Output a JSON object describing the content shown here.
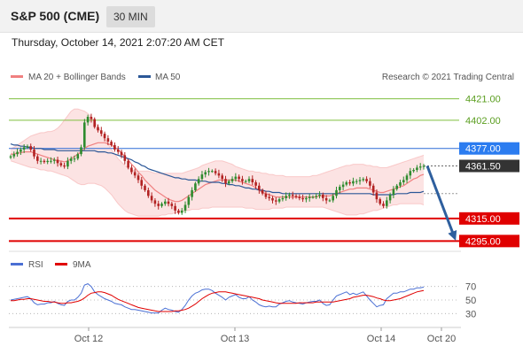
{
  "header": {
    "symbol": "S&P 500 (CME)",
    "timeframe": "30 MIN",
    "datetime": "Thursday, October 14, 2021 2:07:20 AM CET"
  },
  "legend": {
    "bollinger": "MA 20 + Bollinger Bands",
    "ma50": "MA 50",
    "credit": "Research © 2021 Trading Central",
    "rsi": "RSI",
    "rsi_ma": "9MA"
  },
  "colors": {
    "up": "#2e8b2e",
    "down": "#b22222",
    "bollinger": "#f08080",
    "ma50": "#2b5797",
    "resistance": "#7fbf3f",
    "support": "#e00000",
    "current": "#333333",
    "arrow": "#2e5f9e"
  },
  "chart_data": [
    {
      "type": "candlestick",
      "y_axis": "right",
      "ylim": [
        4289,
        4434
      ],
      "x_ticks": [
        "Oct 12",
        "Oct 13",
        "Oct 14",
        "Oct 20"
      ],
      "levels": [
        {
          "value": 4421.0,
          "label": "4421.00",
          "kind": "resistance"
        },
        {
          "value": 4402.0,
          "label": "4402.00",
          "kind": "resistance"
        },
        {
          "value": 4377.0,
          "label": "4377.00",
          "kind": "pivot"
        },
        {
          "value": 4361.5,
          "label": "4361.50",
          "kind": "current"
        },
        {
          "value": 4315.0,
          "label": "4315.00",
          "kind": "support"
        },
        {
          "value": 4295.0,
          "label": "4295.00",
          "kind": "support"
        }
      ],
      "close": [
        4370,
        4372,
        4374,
        4376,
        4378,
        4379,
        4376,
        4370,
        4366,
        4366,
        4365,
        4366,
        4366,
        4367,
        4364,
        4362,
        4361,
        4366,
        4368,
        4368,
        4372,
        4378,
        4400,
        4405,
        4403,
        4396,
        4393,
        4390,
        4386,
        4383,
        4380,
        4376,
        4374,
        4371,
        4366,
        4360,
        4356,
        4353,
        4349,
        4344,
        4340,
        4335,
        4331,
        4328,
        4326,
        4328,
        4330,
        4328,
        4326,
        4322,
        4320,
        4322,
        4327,
        4334,
        4340,
        4346,
        4350,
        4354,
        4356,
        4357,
        4357,
        4355,
        4353,
        4350,
        4346,
        4348,
        4350,
        4352,
        4350,
        4348,
        4348,
        4350,
        4347,
        4344,
        4340,
        4337,
        4334,
        4333,
        4331,
        4330,
        4332,
        4333,
        4335,
        4336,
        4335,
        4334,
        4333,
        4332,
        4333,
        4334,
        4334,
        4335,
        4336,
        4333,
        4331,
        4331,
        4335,
        4340,
        4343,
        4345,
        4347,
        4346,
        4348,
        4348,
        4349,
        4350,
        4348,
        4344,
        4338,
        4332,
        4328,
        4326,
        4331,
        4336,
        4341,
        4344,
        4347,
        4349,
        4353,
        4357,
        4358,
        4360,
        4361,
        4361.5
      ],
      "ma20": [
        4372,
        4372,
        4373,
        4373,
        4374,
        4374,
        4374,
        4373,
        4372,
        4371,
        4370,
        4369,
        4368,
        4367,
        4366,
        4366,
        4365,
        4366,
        4368,
        4370,
        4372,
        4374,
        4377,
        4379,
        4380,
        4381,
        4382,
        4382,
        4382,
        4381,
        4380,
        4378,
        4376,
        4373,
        4370,
        4367,
        4363,
        4360,
        4356,
        4353,
        4349,
        4346,
        4343,
        4340,
        4338,
        4336,
        4334,
        4332,
        4331,
        4330,
        4330,
        4331,
        4333,
        4335,
        4337,
        4339,
        4341,
        4343,
        4345,
        4346,
        4347,
        4348,
        4349,
        4349,
        4349,
        4349,
        4349,
        4349,
        4348,
        4347,
        4346,
        4345,
        4344,
        4342,
        4340,
        4338,
        4337,
        4336,
        4335,
        4334,
        4334,
        4334,
        4334,
        4334,
        4334,
        4334,
        4334,
        4334,
        4334,
        4334,
        4334,
        4334,
        4335,
        4335,
        4335,
        4335,
        4336,
        4337,
        4338,
        4339,
        4340,
        4341,
        4341,
        4342,
        4342,
        4342,
        4342,
        4341,
        4340,
        4339,
        4338,
        4338,
        4339,
        4340,
        4341,
        4342,
        4343,
        4344,
        4346,
        4348,
        4350,
        4351,
        4353,
        4354
      ],
      "bb_upper": [
        4377,
        4378,
        4380,
        4382,
        4384,
        4386,
        4388,
        4389,
        4390,
        4391,
        4391,
        4392,
        4392,
        4393,
        4395,
        4398,
        4402,
        4406,
        4410,
        4412,
        4412,
        4411,
        4410,
        4408,
        4405,
        4401,
        4396,
        4391,
        4386,
        4381,
        4376,
        4372,
        4368,
        4365,
        4362,
        4360,
        4358,
        4357,
        4357,
        4357,
        4357,
        4357,
        4356,
        4355,
        4355,
        4355,
        4355,
        4355,
        4355,
        4355,
        4355,
        4355,
        4356,
        4357,
        4358,
        4359,
        4360,
        4362,
        4363,
        4364,
        4365,
        4366,
        4366,
        4366,
        4365,
        4364,
        4363,
        4361,
        4360,
        4359,
        4358,
        4357,
        4357,
        4356,
        4356,
        4355,
        4355,
        4354,
        4354,
        4353,
        4353,
        4353,
        4352,
        4352,
        4352,
        4352,
        4352,
        4352,
        4352,
        4352,
        4353,
        4353,
        4354,
        4355,
        4356,
        4357,
        4358,
        4359,
        4360,
        4361,
        4362,
        4362,
        4363,
        4363,
        4363,
        4363,
        4362,
        4362,
        4361,
        4361,
        4360,
        4360,
        4360,
        4361,
        4362,
        4363,
        4364,
        4365,
        4366,
        4367,
        4368,
        4369,
        4370,
        4371
      ],
      "bb_lower": [
        4366,
        4365,
        4364,
        4363,
        4362,
        4361,
        4360,
        4360,
        4359,
        4358,
        4358,
        4357,
        4357,
        4356,
        4355,
        4354,
        4353,
        4352,
        4350,
        4348,
        4346,
        4345,
        4345,
        4346,
        4346,
        4346,
        4345,
        4344,
        4342,
        4339,
        4336,
        4332,
        4328,
        4325,
        4322,
        4320,
        4319,
        4318,
        4317,
        4317,
        4317,
        4317,
        4317,
        4317,
        4317,
        4318,
        4318,
        4319,
        4319,
        4320,
        4320,
        4321,
        4322,
        4322,
        4323,
        4323,
        4323,
        4324,
        4324,
        4324,
        4325,
        4325,
        4325,
        4325,
        4325,
        4325,
        4325,
        4325,
        4325,
        4325,
        4324,
        4324,
        4324,
        4323,
        4323,
        4323,
        4323,
        4323,
        4324,
        4324,
        4324,
        4324,
        4325,
        4325,
        4325,
        4325,
        4325,
        4325,
        4325,
        4325,
        4325,
        4325,
        4325,
        4325,
        4324,
        4323,
        4322,
        4321,
        4320,
        4319,
        4318,
        4318,
        4318,
        4318,
        4319,
        4319,
        4320,
        4321,
        4322,
        4322,
        4323,
        4324,
        4325,
        4326,
        4327,
        4327,
        4328,
        4328,
        4328,
        4328,
        4328,
        4328,
        4328,
        4327
      ],
      "ma50": [
        4381,
        4380,
        4380,
        4379,
        4379,
        4378,
        4378,
        4377,
        4377,
        4377,
        4376,
        4376,
        4376,
        4376,
        4375,
        4375,
        4375,
        4375,
        4375,
        4375,
        4375,
        4375,
        4375,
        4375,
        4375,
        4375,
        4374,
        4374,
        4374,
        4373,
        4373,
        4372,
        4371,
        4370,
        4369,
        4368,
        4367,
        4365,
        4364,
        4362,
        4361,
        4359,
        4358,
        4357,
        4356,
        4355,
        4354,
        4353,
        4352,
        4351,
        4351,
        4350,
        4350,
        4349,
        4349,
        4349,
        4348,
        4348,
        4348,
        4347,
        4347,
        4347,
        4347,
        4346,
        4346,
        4345,
        4345,
        4344,
        4344,
        4343,
        4342,
        4342,
        4341,
        4341,
        4340,
        4340,
        4339,
        4339,
        4338,
        4338,
        4338,
        4337,
        4337,
        4337,
        4337,
        4337,
        4337,
        4337,
        4337,
        4337,
        4337,
        4337,
        4337,
        4337,
        4337,
        4337,
        4337,
        4337,
        4337,
        4337,
        4337,
        4337,
        4337,
        4337,
        4337,
        4337,
        4337,
        4337,
        4336,
        4336,
        4336,
        4336,
        4336,
        4336,
        4336,
        4337,
        4337,
        4337,
        4337,
        4338,
        4338,
        4338,
        4338,
        4339
      ],
      "projection": {
        "from": 4361.5,
        "to": 4295.0
      }
    },
    {
      "type": "line",
      "title": "RSI",
      "ylim": [
        20,
        80
      ],
      "y_ticks": [
        30,
        50,
        70
      ],
      "series": [
        {
          "name": "RSI",
          "values": [
            50,
            51,
            52,
            53,
            54,
            55,
            52,
            46,
            43,
            44,
            44,
            46,
            46,
            48,
            45,
            43,
            42,
            48,
            50,
            50,
            54,
            60,
            72,
            74,
            70,
            62,
            58,
            55,
            52,
            50,
            48,
            45,
            44,
            43,
            40,
            38,
            36,
            36,
            35,
            34,
            33,
            32,
            31,
            31,
            31,
            35,
            38,
            36,
            35,
            33,
            32,
            36,
            42,
            50,
            56,
            60,
            62,
            65,
            66,
            66,
            64,
            60,
            57,
            54,
            50,
            54,
            56,
            58,
            54,
            52,
            52,
            55,
            50,
            47,
            43,
            41,
            40,
            41,
            40,
            40,
            44,
            46,
            48,
            49,
            47,
            46,
            45,
            44,
            46,
            47,
            48,
            48,
            50,
            45,
            42,
            43,
            50,
            56,
            58,
            60,
            62,
            58,
            60,
            58,
            60,
            62,
            56,
            50,
            45,
            40,
            42,
            43,
            52,
            56,
            60,
            60,
            62,
            62,
            64,
            66,
            66,
            68,
            68,
            69
          ]
        },
        {
          "name": "9MA",
          "values": [
            49,
            49,
            50,
            51,
            51,
            52,
            52,
            51,
            50,
            49,
            48,
            48,
            47,
            47,
            46,
            45,
            45,
            46,
            46,
            47,
            48,
            50,
            53,
            57,
            60,
            61,
            62,
            62,
            61,
            59,
            57,
            54,
            51,
            49,
            47,
            45,
            43,
            41,
            39,
            38,
            37,
            36,
            35,
            34,
            33,
            33,
            33,
            33,
            33,
            34,
            34,
            35,
            36,
            38,
            41,
            44,
            48,
            52,
            55,
            58,
            60,
            61,
            62,
            62,
            62,
            61,
            60,
            59,
            58,
            57,
            56,
            55,
            54,
            53,
            52,
            50,
            49,
            48,
            47,
            46,
            45,
            45,
            45,
            45,
            45,
            45,
            46,
            46,
            46,
            46,
            46,
            47,
            47,
            47,
            47,
            47,
            47,
            48,
            49,
            50,
            51,
            52,
            54,
            55,
            56,
            57,
            57,
            56,
            55,
            53,
            52,
            50,
            49,
            49,
            50,
            51,
            52,
            54,
            56,
            58,
            60,
            62,
            63,
            64
          ]
        }
      ]
    }
  ]
}
